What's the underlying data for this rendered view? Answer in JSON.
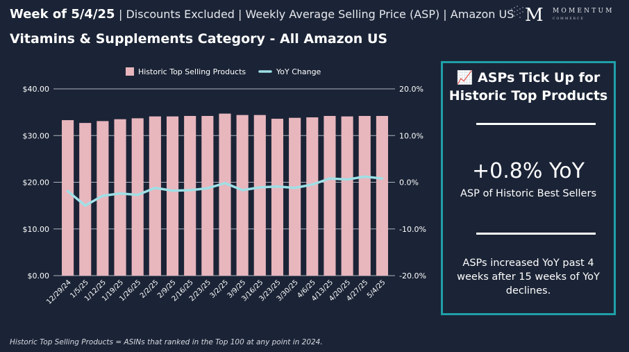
{
  "header": {
    "week": "Week of 5/4/25",
    "subtitle": "| Discounts Excluded | Weekly Average Selling Price (ASP) | Amazon US"
  },
  "title": "Vitamins & Supplements Category - All Amazon US",
  "logo": {
    "word": "MOMENTUM",
    "sub": "COMMERCE",
    "letter": "M"
  },
  "panel": {
    "title_line1": "📈 ASPs Tick Up for",
    "title_line2": "Historic Top Products",
    "big": "+0.8% YoY",
    "caption": "ASP of Historic Best Sellers",
    "body_line1": "ASPs increased YoY past 4",
    "body_line2": "weeks after 15 weeks of YoY",
    "body_line3": "declines."
  },
  "footnote": "Historic Top Selling Products = ASINs that ranked in the Top 100 at any point in 2024.",
  "colors": {
    "bar": "#e8b6bd",
    "line": "#9ee0e6",
    "accent": "#1fa0a8",
    "grid": "#c8ccd6"
  },
  "chart_data": {
    "type": "bar",
    "categories": [
      "12/29/24",
      "1/5/25",
      "1/12/25",
      "1/19/25",
      "1/26/25",
      "2/2/25",
      "2/9/25",
      "2/16/25",
      "2/23/25",
      "3/2/25",
      "3/9/25",
      "3/16/25",
      "3/23/25",
      "3/30/25",
      "4/6/25",
      "4/13/25",
      "4/20/25",
      "4/27/25",
      "5/4/25"
    ],
    "series": [
      {
        "name": "Historic Top Selling Products",
        "type": "bar",
        "axis": "left",
        "values": [
          33.3,
          32.7,
          33.1,
          33.5,
          33.7,
          34.1,
          34.1,
          34.2,
          34.2,
          34.7,
          34.4,
          34.4,
          33.6,
          33.8,
          33.9,
          34.2,
          34.1,
          34.2,
          34.2
        ]
      },
      {
        "name": "YoY Change",
        "type": "line",
        "axis": "right",
        "values": [
          -1.9,
          -5.0,
          -2.9,
          -2.4,
          -2.7,
          -1.2,
          -1.8,
          -1.7,
          -1.3,
          -0.2,
          -1.7,
          -1.1,
          -0.9,
          -1.2,
          -0.5,
          0.8,
          0.6,
          1.2,
          0.8
        ]
      }
    ],
    "y_left": {
      "min": 0,
      "max": 40,
      "ticks": [
        0,
        10,
        20,
        30,
        40
      ],
      "tick_labels": [
        "$0.00",
        "$10.00",
        "$20.00",
        "$30.00",
        "$40.00"
      ]
    },
    "y_right": {
      "min": -20,
      "max": 20,
      "ticks": [
        -20,
        -10,
        0,
        10,
        20
      ],
      "tick_labels": [
        "-20.0%",
        "-10.0%",
        "0.0%",
        "10.0%",
        "20.0%"
      ]
    },
    "legend": [
      "Historic Top Selling Products",
      "YoY Change"
    ],
    "legend_position": "top-center",
    "grid": true
  }
}
